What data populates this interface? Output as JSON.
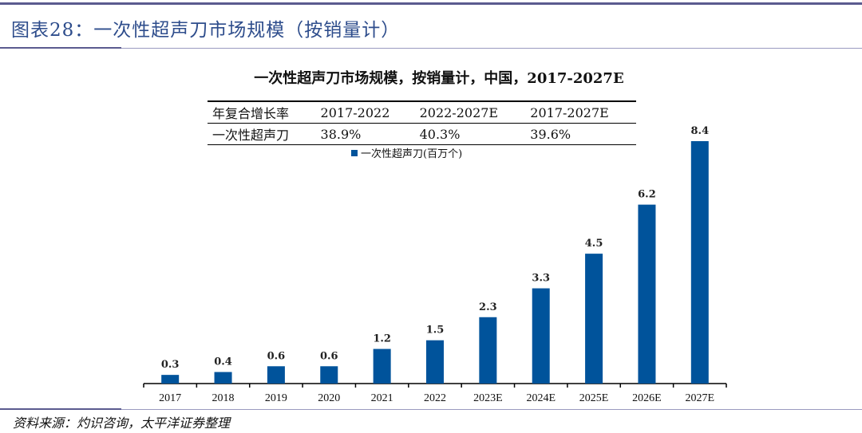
{
  "figure_title": "图表28：一次性超声刀市场规模（按销量计）",
  "source": "资料来源：灼识咨询，太平洋证券整理",
  "cagr_table": {
    "header": [
      "年复合增长率",
      "2017-2022",
      "2022-2027E",
      "2017-2027E"
    ],
    "rows": [
      [
        "一次性超声刀",
        "38.9%",
        "40.3%",
        "39.6%"
      ]
    ]
  },
  "colors": {
    "bar": "#00539b",
    "title": "#2e4d8c"
  },
  "chart_data": {
    "type": "bar",
    "title": "一次性超声刀市场规模，按销量计，中国，2017-2027E",
    "legend": "一次性超声刀(百万个)",
    "legend_position": "top-center",
    "categories": [
      "2017",
      "2018",
      "2019",
      "2020",
      "2021",
      "2022",
      "2023E",
      "2024E",
      "2025E",
      "2026E",
      "2027E"
    ],
    "values": [
      0.3,
      0.4,
      0.6,
      0.6,
      1.2,
      1.5,
      2.3,
      3.3,
      4.5,
      6.2,
      8.4
    ],
    "labels": [
      "0.3",
      "0.4",
      "0.6",
      "0.6",
      "1.2",
      "1.5",
      "2.3",
      "3.3",
      "4.5",
      "6.2",
      "8.4"
    ],
    "ylim": [
      0,
      8.4
    ],
    "grid": false
  }
}
